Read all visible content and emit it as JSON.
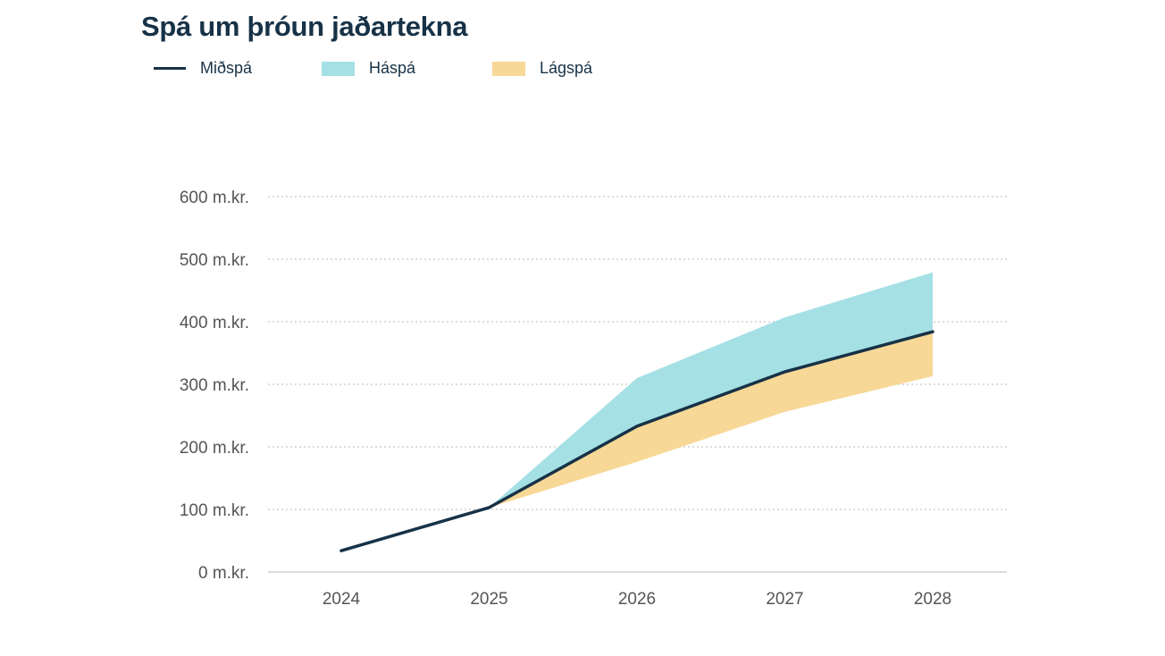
{
  "chart_data": {
    "type": "area",
    "title": "Spá um þróun jaðartekna",
    "xlabel": "",
    "ylabel": "",
    "categories": [
      "2024",
      "2025",
      "2026",
      "2027",
      "2028"
    ],
    "ylim": [
      0,
      600
    ],
    "yticks": [
      0,
      100,
      200,
      300,
      400,
      500,
      600
    ],
    "ytick_labels": [
      "0 m.kr.",
      "100 m.kr.",
      "200 m.kr.",
      "300 m.kr.",
      "400 m.kr.",
      "500 m.kr.",
      "600 m.kr."
    ],
    "grid": "horizontal dotted",
    "legend_position": "top-left",
    "series": [
      {
        "name": "Miðspá",
        "kind": "line",
        "color": "#173247",
        "values": [
          34,
          103,
          233,
          320,
          384
        ]
      },
      {
        "name": "Háspá",
        "kind": "band-upper",
        "color": "#a5e0e5",
        "values": [
          null,
          103,
          310,
          407,
          479
        ]
      },
      {
        "name": "Lágspá",
        "kind": "band-lower",
        "color": "#f7d896",
        "values": [
          null,
          103,
          176,
          256,
          313
        ]
      }
    ]
  }
}
